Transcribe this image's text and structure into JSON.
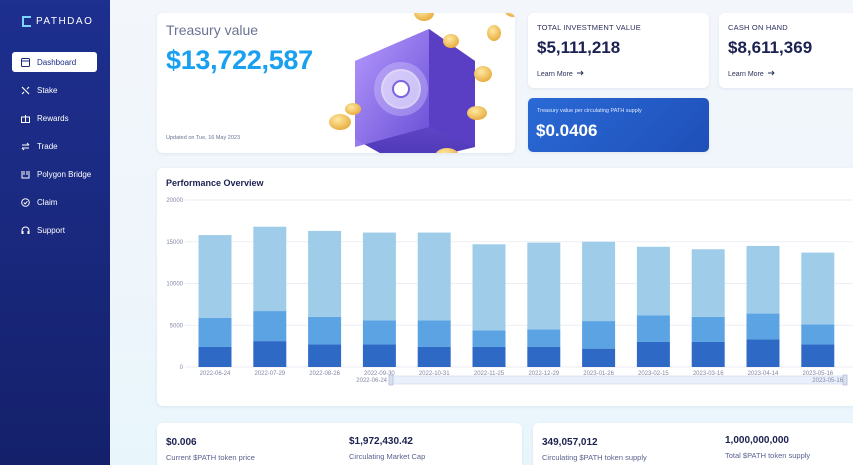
{
  "brand": {
    "name": "PATHDAO"
  },
  "sidebar": {
    "items": [
      {
        "label": "Dashboard",
        "icon": "dashboard-icon"
      },
      {
        "label": "Stake",
        "icon": "stake-icon"
      },
      {
        "label": "Rewards",
        "icon": "gift-icon"
      },
      {
        "label": "Trade",
        "icon": "trade-icon"
      },
      {
        "label": "Polygon Bridge",
        "icon": "bridge-icon"
      },
      {
        "label": "Claim",
        "icon": "check-circle-icon"
      },
      {
        "label": "Support",
        "icon": "headset-icon"
      }
    ]
  },
  "treasury": {
    "label": "Treasury value",
    "value": "$13,722,587",
    "updated": "Updated on Tue, 16 May 2023"
  },
  "investment": {
    "title": "TOTAL INVESTMENT VALUE",
    "value": "$5,111,218",
    "link": "Learn More"
  },
  "cash": {
    "title": "CASH ON HAND",
    "value": "$8,611,369",
    "link": "Learn More"
  },
  "per_path": {
    "title": "Treasury value per circulating PATH supply",
    "value": "$0.0406"
  },
  "performance": {
    "title": "Performance Overview"
  },
  "chart_data": {
    "type": "bar",
    "stacked": true,
    "categories": [
      "2022-06-24",
      "2022-07-29",
      "2022-08-26",
      "2022-09-30",
      "2022-10-31",
      "2022-11-25",
      "2022-12-29",
      "2023-01-26",
      "2023-02-15",
      "2023-03-16",
      "2023-04-14",
      "2023-05-16"
    ],
    "series": [
      {
        "values": [
          2400,
          3100,
          2700,
          2700,
          2400,
          2400,
          2400,
          2200,
          3000,
          3000,
          3300,
          2700
        ],
        "color": "#2f69c6"
      },
      {
        "values": [
          3500,
          3600,
          3300,
          2900,
          3200,
          2000,
          2100,
          3300,
          3200,
          3000,
          3100,
          2400
        ],
        "color": "#5ba3e3"
      },
      {
        "values": [
          9900,
          10100,
          10300,
          10500,
          10500,
          10300,
          10400,
          9500,
          8200,
          8100,
          8100,
          8600
        ],
        "color": "#9fcde9"
      }
    ],
    "yticks": [
      "0",
      "5000",
      "10000",
      "15000",
      "20000"
    ],
    "ylim": [
      0,
      20000
    ],
    "slider_range": [
      "2022-06-24",
      "2023-05-16"
    ],
    "grid": true
  },
  "bottom": {
    "left": [
      {
        "value": "$0.006",
        "caption": "Current $PATH token price"
      },
      {
        "value": "$1,972,430.42",
        "caption": "Circulating Market Cap"
      }
    ],
    "right": [
      {
        "value": "349,057,012",
        "caption": "Circulating $PATH token supply"
      },
      {
        "value": "1,000,000,000",
        "caption": "Total $PATH token supply"
      }
    ]
  }
}
